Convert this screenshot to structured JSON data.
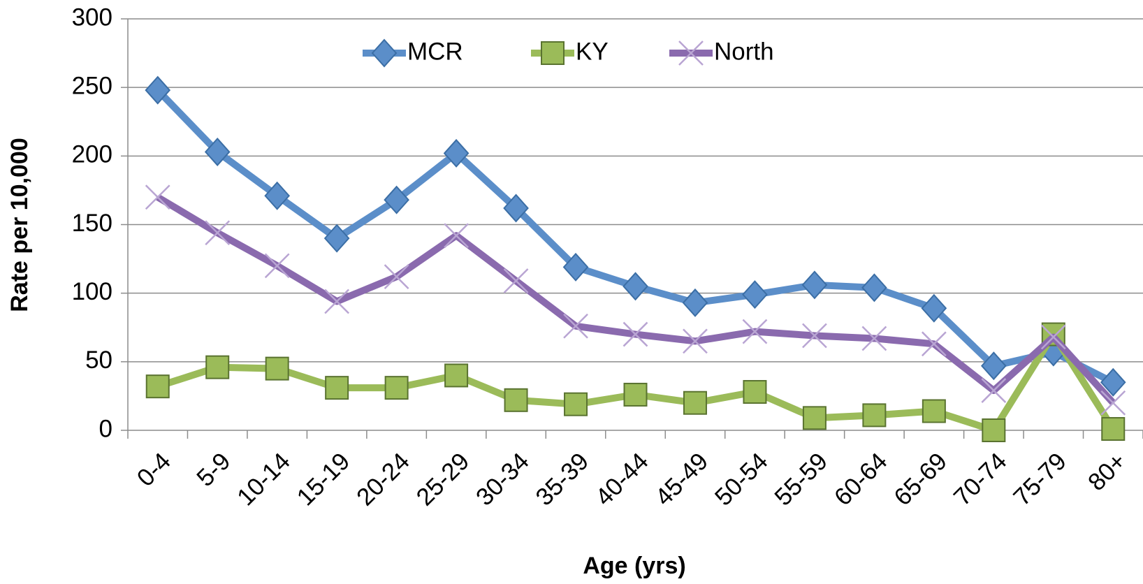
{
  "chart_data": {
    "type": "line",
    "xlabel": "Age (yrs)",
    "ylabel": "Rate per 10,000",
    "categories": [
      "0-4",
      "5-9",
      "10-14",
      "15-19",
      "20-24",
      "25-29",
      "30-34",
      "35-39",
      "40-44",
      "45-49",
      "50-54",
      "55-59",
      "60-64",
      "65-69",
      "70-74",
      "75-79",
      "80+"
    ],
    "series": [
      {
        "name": "MCR",
        "color": "#5b8ec9",
        "marker": "diamond",
        "values": [
          248,
          203,
          171,
          140,
          168,
          202,
          162,
          119,
          105,
          93,
          99,
          106,
          104,
          89,
          47,
          57,
          35
        ]
      },
      {
        "name": "KY",
        "color": "#9bbb59",
        "marker": "square",
        "values": [
          32,
          46,
          45,
          31,
          31,
          40,
          22,
          19,
          26,
          20,
          28,
          9,
          11,
          14,
          0,
          70,
          1
        ]
      },
      {
        "name": "North",
        "color": "#8a6aae",
        "marker": "x",
        "values": [
          170,
          144,
          120,
          94,
          112,
          142,
          109,
          76,
          70,
          65,
          72,
          69,
          67,
          63,
          29,
          68,
          20
        ]
      }
    ],
    "ylim": [
      0,
      300
    ],
    "yticks": [
      0,
      50,
      100,
      150,
      200,
      250,
      300
    ],
    "grid": true,
    "legend": "top"
  }
}
